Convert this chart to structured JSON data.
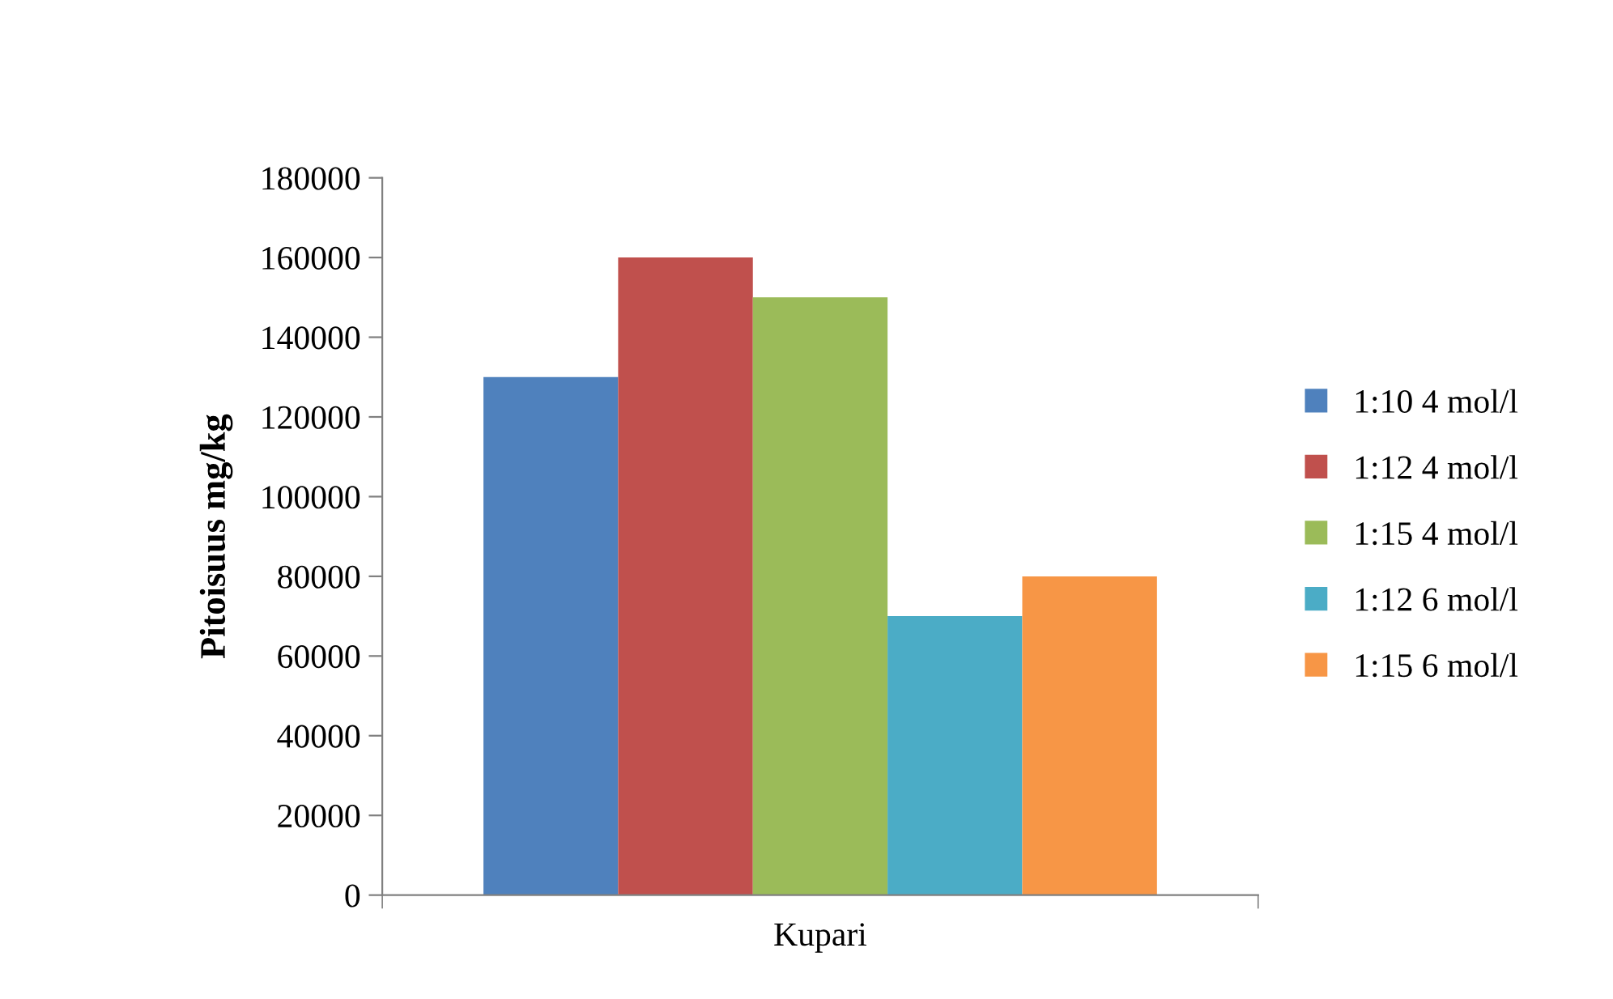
{
  "chart_data": {
    "type": "bar",
    "ylabel": "Pitoisuus mg/kg",
    "categories": [
      "Kupari"
    ],
    "series": [
      {
        "name": "1:10 4 mol/l",
        "color": "#4f81bd",
        "values": [
          130000
        ]
      },
      {
        "name": "1:12 4 mol/l",
        "color": "#c0504d",
        "values": [
          160000
        ]
      },
      {
        "name": "1:15 4 mol/l",
        "color": "#9bbb59",
        "values": [
          150000
        ]
      },
      {
        "name": "1:12 6 mol/l",
        "color": "#4bacc6",
        "values": [
          70000
        ]
      },
      {
        "name": "1:15 6 mol/l",
        "color": "#f79646",
        "values": [
          80000
        ]
      }
    ],
    "ylim": [
      0,
      180000
    ],
    "yticks": [
      0,
      20000,
      40000,
      60000,
      80000,
      100000,
      120000,
      140000,
      160000,
      180000
    ],
    "grid": false,
    "legend": "right"
  }
}
